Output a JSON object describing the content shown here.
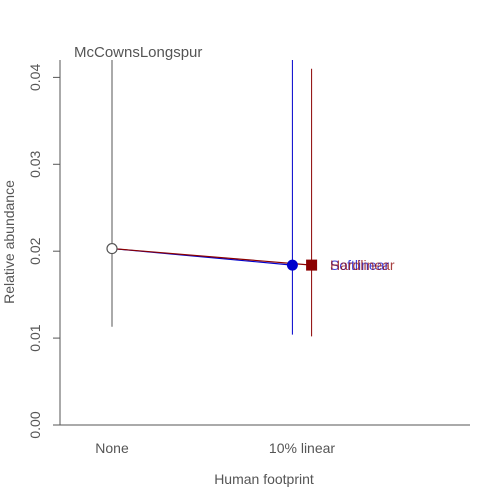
{
  "chart_data": {
    "type": "scatter",
    "title": "McCownsLongspur",
    "xlabel": "Human footprint",
    "ylabel": "Relative abundance",
    "categories": [
      "None",
      "10% linear"
    ],
    "ylim": [
      0,
      0.042
    ],
    "yticks": [
      0,
      0.01,
      0.02,
      0.03,
      0.04
    ],
    "ytick_labels": [
      "0.00",
      "0.01",
      "0.02",
      "0.03",
      "0.04"
    ],
    "grid": false,
    "reference": {
      "category": "None",
      "value": 0.0203,
      "lower": 0.0113,
      "upper": 0.042,
      "marker": "open-circle",
      "color": "#555555"
    },
    "series": [
      {
        "name": "Softlinear",
        "category": "10% linear",
        "offset": -0.12,
        "value": 0.0184,
        "lower": 0.0104,
        "upper": 0.042,
        "marker": "circle",
        "color": "#0000cc"
      },
      {
        "name": "Hardlinear",
        "category": "10% linear",
        "offset": 0.12,
        "value": 0.0184,
        "lower": 0.0102,
        "upper": 0.041,
        "marker": "square",
        "color": "#8b0000"
      }
    ]
  }
}
